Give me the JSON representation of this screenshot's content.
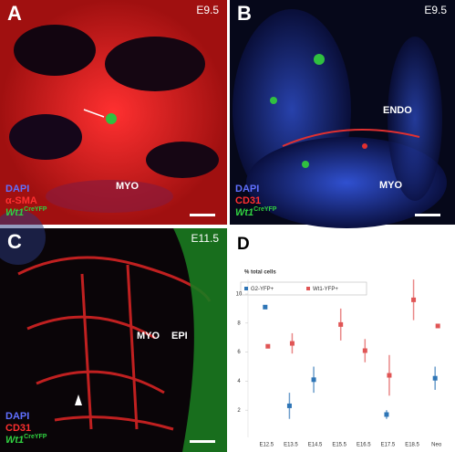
{
  "panels": [
    {
      "letter": "A",
      "stage": "E9.5",
      "labels": [
        "MYO"
      ],
      "stains": [
        "DAPI",
        "α-SMA"
      ],
      "reporter": "Wt1",
      "reporter_sup": "CreYFP"
    },
    {
      "letter": "B",
      "stage": "E9.5",
      "labels": [
        "ENDO",
        "MYO"
      ],
      "stains": [
        "DAPI",
        "CD31"
      ],
      "reporter": "Wt1",
      "reporter_sup": "CreYFP"
    },
    {
      "letter": "C",
      "stage": "E11.5",
      "labels": [
        "MYO",
        "EPI"
      ],
      "stains": [
        "DAPI",
        "CD31"
      ],
      "reporter": "Wt1",
      "reporter_sup": "CreYFP"
    }
  ],
  "chart_data": {
    "type": "errorbar",
    "panel_letter": "D",
    "y_label": "% total cells",
    "categories": [
      "E12.5",
      "E13.5",
      "E14.5",
      "E15.5",
      "E16.5",
      "E17.5",
      "E18.5",
      "Neo"
    ],
    "series": [
      {
        "name": "G2-YFP+",
        "color": "#2e75b6",
        "values": [
          9.1,
          2.3,
          4.1,
          null,
          null,
          1.7,
          null,
          4.2
        ],
        "errors": [
          0.1,
          0.9,
          0.9,
          null,
          null,
          0.3,
          null,
          0.8
        ]
      },
      {
        "name": "Wt1-YFP+",
        "color": "#e05555",
        "values": [
          6.4,
          6.6,
          null,
          7.9,
          6.1,
          4.4,
          9.6,
          7.8
        ],
        "errors": [
          0.1,
          0.7,
          null,
          1.1,
          0.8,
          1.4,
          1.4,
          0.1
        ]
      }
    ],
    "ylim": [
      0,
      11
    ],
    "yticks": [
      2,
      4,
      6,
      8,
      10
    ],
    "legend": "top-left"
  }
}
